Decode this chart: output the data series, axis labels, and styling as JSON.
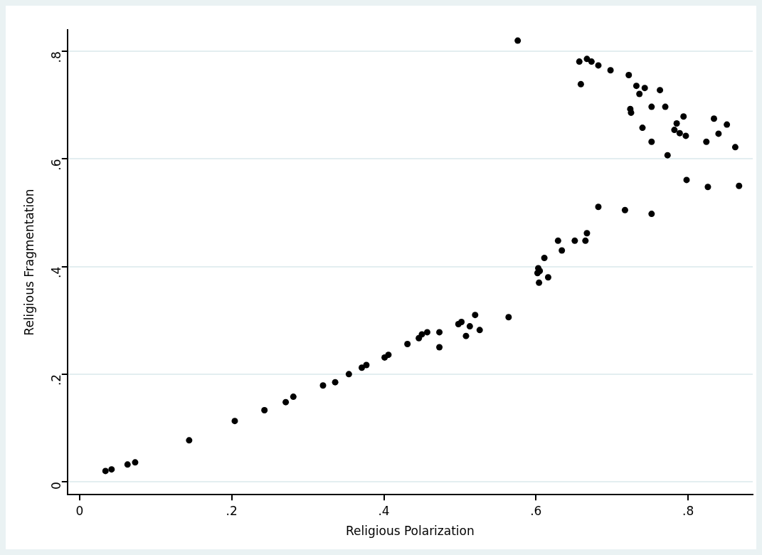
{
  "chart_data": {
    "type": "scatter",
    "xlabel": "Religious Polarization",
    "ylabel": "Religious Fragmentation",
    "xlim": [
      -0.016,
      0.885
    ],
    "ylim": [
      -0.024,
      0.84
    ],
    "xticks": [
      0,
      {
        "value": 0.2,
        "label": ".2"
      },
      {
        "value": 0.4,
        "label": ".4"
      },
      {
        "value": 0.6,
        "label": ".6"
      },
      {
        "value": 0.8,
        "label": ".8"
      }
    ],
    "yticks": [
      0,
      {
        "value": 0.2,
        "label": ".2"
      },
      {
        "value": 0.4,
        "label": ".4"
      },
      {
        "value": 0.6,
        "label": ".6"
      },
      {
        "value": 0.8,
        "label": ".8"
      }
    ],
    "grid": "y",
    "marker": "circle",
    "legend": false,
    "series": [
      {
        "color": "#000000",
        "x": [
          0.034,
          0.042,
          0.063,
          0.073,
          0.144,
          0.204,
          0.243,
          0.271,
          0.281,
          0.32,
          0.336,
          0.354,
          0.371,
          0.377,
          0.401,
          0.406,
          0.431,
          0.446,
          0.45,
          0.457,
          0.473,
          0.473,
          0.498,
          0.502,
          0.508,
          0.513,
          0.52,
          0.526,
          0.564,
          0.603,
          0.602,
          0.605,
          0.604,
          0.616,
          0.611,
          0.629,
          0.634,
          0.651,
          0.665,
          0.667,
          0.682,
          0.717,
          0.752,
          0.798,
          0.826,
          0.867,
          0.576,
          0.657,
          0.667,
          0.673,
          0.682,
          0.698,
          0.722,
          0.659,
          0.732,
          0.743,
          0.736,
          0.763,
          0.724,
          0.725,
          0.752,
          0.77,
          0.794,
          0.785,
          0.782,
          0.789,
          0.797,
          0.74,
          0.752,
          0.773,
          0.824,
          0.834,
          0.84,
          0.851,
          0.862
        ],
        "values": [
          0.02,
          0.023,
          0.032,
          0.036,
          0.077,
          0.113,
          0.133,
          0.148,
          0.158,
          0.179,
          0.185,
          0.2,
          0.212,
          0.217,
          0.231,
          0.236,
          0.256,
          0.267,
          0.274,
          0.278,
          0.278,
          0.25,
          0.293,
          0.297,
          0.271,
          0.289,
          0.31,
          0.282,
          0.306,
          0.397,
          0.388,
          0.392,
          0.37,
          0.38,
          0.416,
          0.448,
          0.43,
          0.448,
          0.448,
          0.462,
          0.511,
          0.505,
          0.498,
          0.561,
          0.548,
          0.55,
          0.82,
          0.781,
          0.786,
          0.781,
          0.774,
          0.765,
          0.756,
          0.739,
          0.736,
          0.732,
          0.721,
          0.728,
          0.693,
          0.686,
          0.697,
          0.697,
          0.679,
          0.666,
          0.654,
          0.648,
          0.643,
          0.658,
          0.632,
          0.607,
          0.632,
          0.675,
          0.647,
          0.664,
          0.622
        ]
      }
    ]
  }
}
